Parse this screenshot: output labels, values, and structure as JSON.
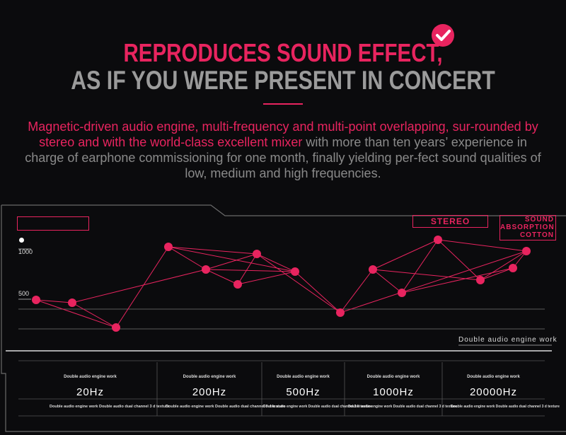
{
  "header": {
    "title_line1": "REPRODUCES SOUND EFFECT,",
    "title_line2": "AS IF YOU WERE PRESENT IN CONCERT"
  },
  "description": {
    "highlight": "Magnetic-driven audio engine, multi-frequency and multi-point overlapping, sur-rounded by stereo and with the world-class excellent mixer",
    "rest": " with more than ten years’ experience in charge of earphone commissioning for one month, finally yielding per-fect sound qualities of low, medium and high frequencies."
  },
  "graph": {
    "label_stereo": "STEREO",
    "label_sound_1": "SOUND",
    "label_sound_2": "ABSORPTION",
    "label_sound_3": "COTTON",
    "tick_1000": "1000",
    "tick_500": "500",
    "engine_label": "Double audio engine work"
  },
  "frequency_columns": [
    {
      "top": "Double audio engine work",
      "freq": "20Hz",
      "bottom": "Double audio engine work Double audio dual channel 3 d texture"
    },
    {
      "top": "Double audio engine work",
      "freq": "200Hz",
      "bottom": "Double audio engine work Double audio dual channel 3 d texture"
    },
    {
      "top": "Double audio engine work",
      "freq": "500Hz",
      "bottom": "Double audio engine work Double audio dual channel 3 d texture"
    },
    {
      "top": "Double audio engine work",
      "freq": "1000Hz",
      "bottom": "Double audio engine work Double audio dual channel 3 d texture"
    },
    {
      "top": "Double audio engine work",
      "freq": "20000Hz",
      "bottom": "Double audio engine work Double audio dual channel 3 d texture"
    }
  ],
  "colors": {
    "accent": "#e8245f",
    "grey_text": "#8a8a8a",
    "background": "#0b0b0d"
  }
}
